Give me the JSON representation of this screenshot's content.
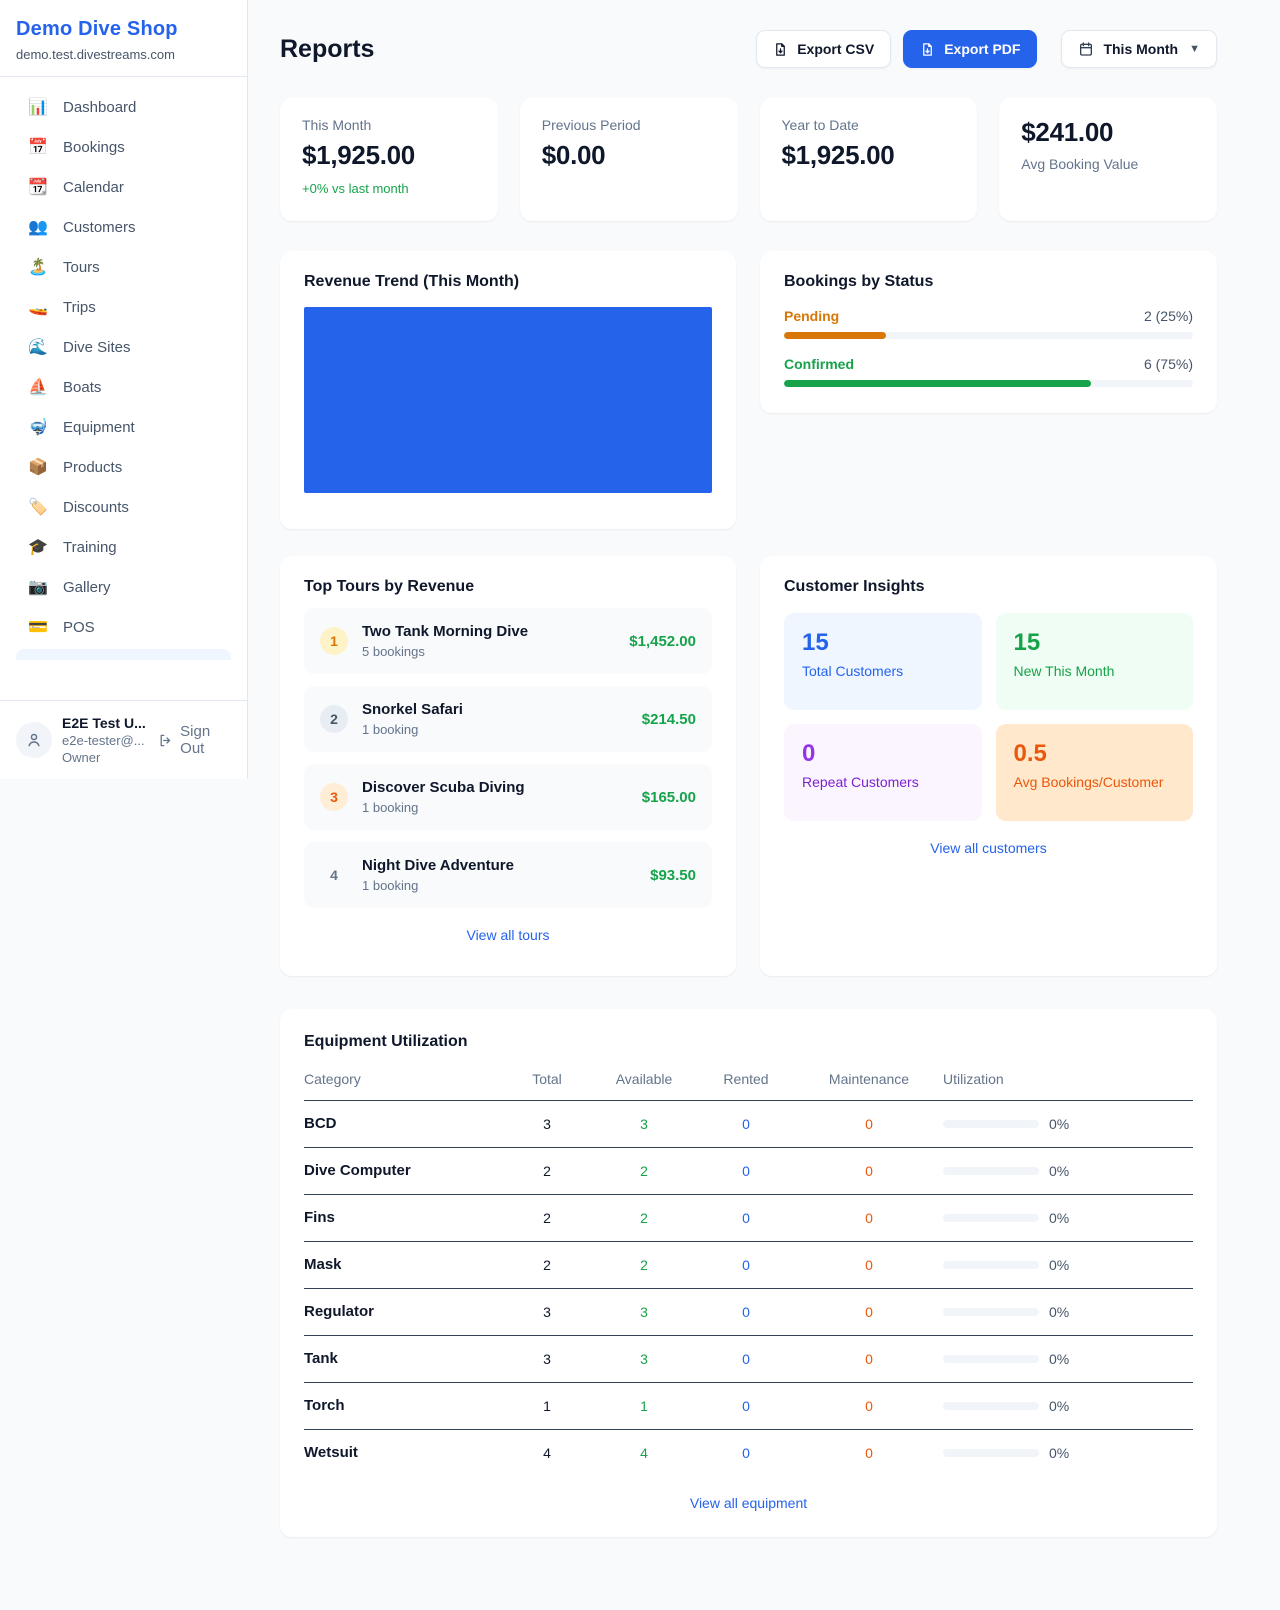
{
  "colors": {
    "accent_blue": "#2563eb",
    "chart_fill": "#2563eb",
    "green": "#16a34a",
    "amber": "#d97706",
    "orange": "#ea580c",
    "purple": "#9333ea"
  },
  "sidebar": {
    "brand": "Demo Dive Shop",
    "domain": "demo.test.divestreams.com",
    "items": [
      {
        "icon": "📊",
        "label": "Dashboard"
      },
      {
        "icon": "📅",
        "label": "Bookings"
      },
      {
        "icon": "📆",
        "label": "Calendar"
      },
      {
        "icon": "👥",
        "label": "Customers"
      },
      {
        "icon": "🏝️",
        "label": "Tours"
      },
      {
        "icon": "🚤",
        "label": "Trips"
      },
      {
        "icon": "🌊",
        "label": "Dive Sites"
      },
      {
        "icon": "⛵",
        "label": "Boats"
      },
      {
        "icon": "🤿",
        "label": "Equipment"
      },
      {
        "icon": "📦",
        "label": "Products"
      },
      {
        "icon": "🏷️",
        "label": "Discounts"
      },
      {
        "icon": "🎓",
        "label": "Training"
      },
      {
        "icon": "📷",
        "label": "Gallery"
      },
      {
        "icon": "💳",
        "label": "POS"
      }
    ],
    "user": {
      "name": "E2E Test U...",
      "email": "e2e-tester@...",
      "role": "Owner",
      "sign_out": "Sign Out"
    }
  },
  "header": {
    "title": "Reports",
    "export_csv": "Export CSV",
    "export_pdf": "Export PDF",
    "period": "This Month"
  },
  "stats": {
    "this_month": {
      "label": "This Month",
      "value": "$1,925.00",
      "delta": "+0% vs last month"
    },
    "previous_period": {
      "label": "Previous Period",
      "value": "$0.00"
    },
    "year_to_date": {
      "label": "Year to Date",
      "value": "$1,925.00"
    },
    "avg_booking": {
      "label": "Avg Booking Value",
      "value": "$241.00"
    }
  },
  "revenue_trend": {
    "title": "Revenue Trend (This Month)",
    "note": "solid filled bar area"
  },
  "bookings_by_status": {
    "title": "Bookings by Status",
    "rows": [
      {
        "label": "Pending",
        "value": "2 (25%)",
        "pct": 25
      },
      {
        "label": "Confirmed",
        "value": "6 (75%)",
        "pct": 75
      }
    ]
  },
  "top_tours": {
    "title": "Top Tours by Revenue",
    "items": [
      {
        "rank": "1",
        "name": "Two Tank Morning Dive",
        "bookings": "5 bookings",
        "amount": "$1,452.00"
      },
      {
        "rank": "2",
        "name": "Snorkel Safari",
        "bookings": "1 booking",
        "amount": "$214.50"
      },
      {
        "rank": "3",
        "name": "Discover Scuba Diving",
        "bookings": "1 booking",
        "amount": "$165.00"
      },
      {
        "rank": "4",
        "name": "Night Dive Adventure",
        "bookings": "1 booking",
        "amount": "$93.50"
      }
    ],
    "view_all": "View all tours"
  },
  "customer_insights": {
    "title": "Customer Insights",
    "tiles": [
      {
        "value": "15",
        "label": "Total Customers"
      },
      {
        "value": "15",
        "label": "New This Month"
      },
      {
        "value": "0",
        "label": "Repeat Customers"
      },
      {
        "value": "0.5",
        "label": "Avg Bookings/Customer"
      }
    ],
    "view_all": "View all customers"
  },
  "equipment": {
    "title": "Equipment Utilization",
    "columns": {
      "category": "Category",
      "total": "Total",
      "available": "Available",
      "rented": "Rented",
      "maintenance": "Maintenance",
      "utilization": "Utilization"
    },
    "rows": [
      {
        "category": "BCD",
        "total": "3",
        "available": "3",
        "rented": "0",
        "maintenance": "0",
        "utilization": "0%",
        "pct": 0
      },
      {
        "category": "Dive Computer",
        "total": "2",
        "available": "2",
        "rented": "0",
        "maintenance": "0",
        "utilization": "0%",
        "pct": 0
      },
      {
        "category": "Fins",
        "total": "2",
        "available": "2",
        "rented": "0",
        "maintenance": "0",
        "utilization": "0%",
        "pct": 0
      },
      {
        "category": "Mask",
        "total": "2",
        "available": "2",
        "rented": "0",
        "maintenance": "0",
        "utilization": "0%",
        "pct": 0
      },
      {
        "category": "Regulator",
        "total": "3",
        "available": "3",
        "rented": "0",
        "maintenance": "0",
        "utilization": "0%",
        "pct": 0
      },
      {
        "category": "Tank",
        "total": "3",
        "available": "3",
        "rented": "0",
        "maintenance": "0",
        "utilization": "0%",
        "pct": 0
      },
      {
        "category": "Torch",
        "total": "1",
        "available": "1",
        "rented": "0",
        "maintenance": "0",
        "utilization": "0%",
        "pct": 0
      },
      {
        "category": "Wetsuit",
        "total": "4",
        "available": "4",
        "rented": "0",
        "maintenance": "0",
        "utilization": "0%",
        "pct": 0
      }
    ],
    "view_all": "View all equipment"
  }
}
